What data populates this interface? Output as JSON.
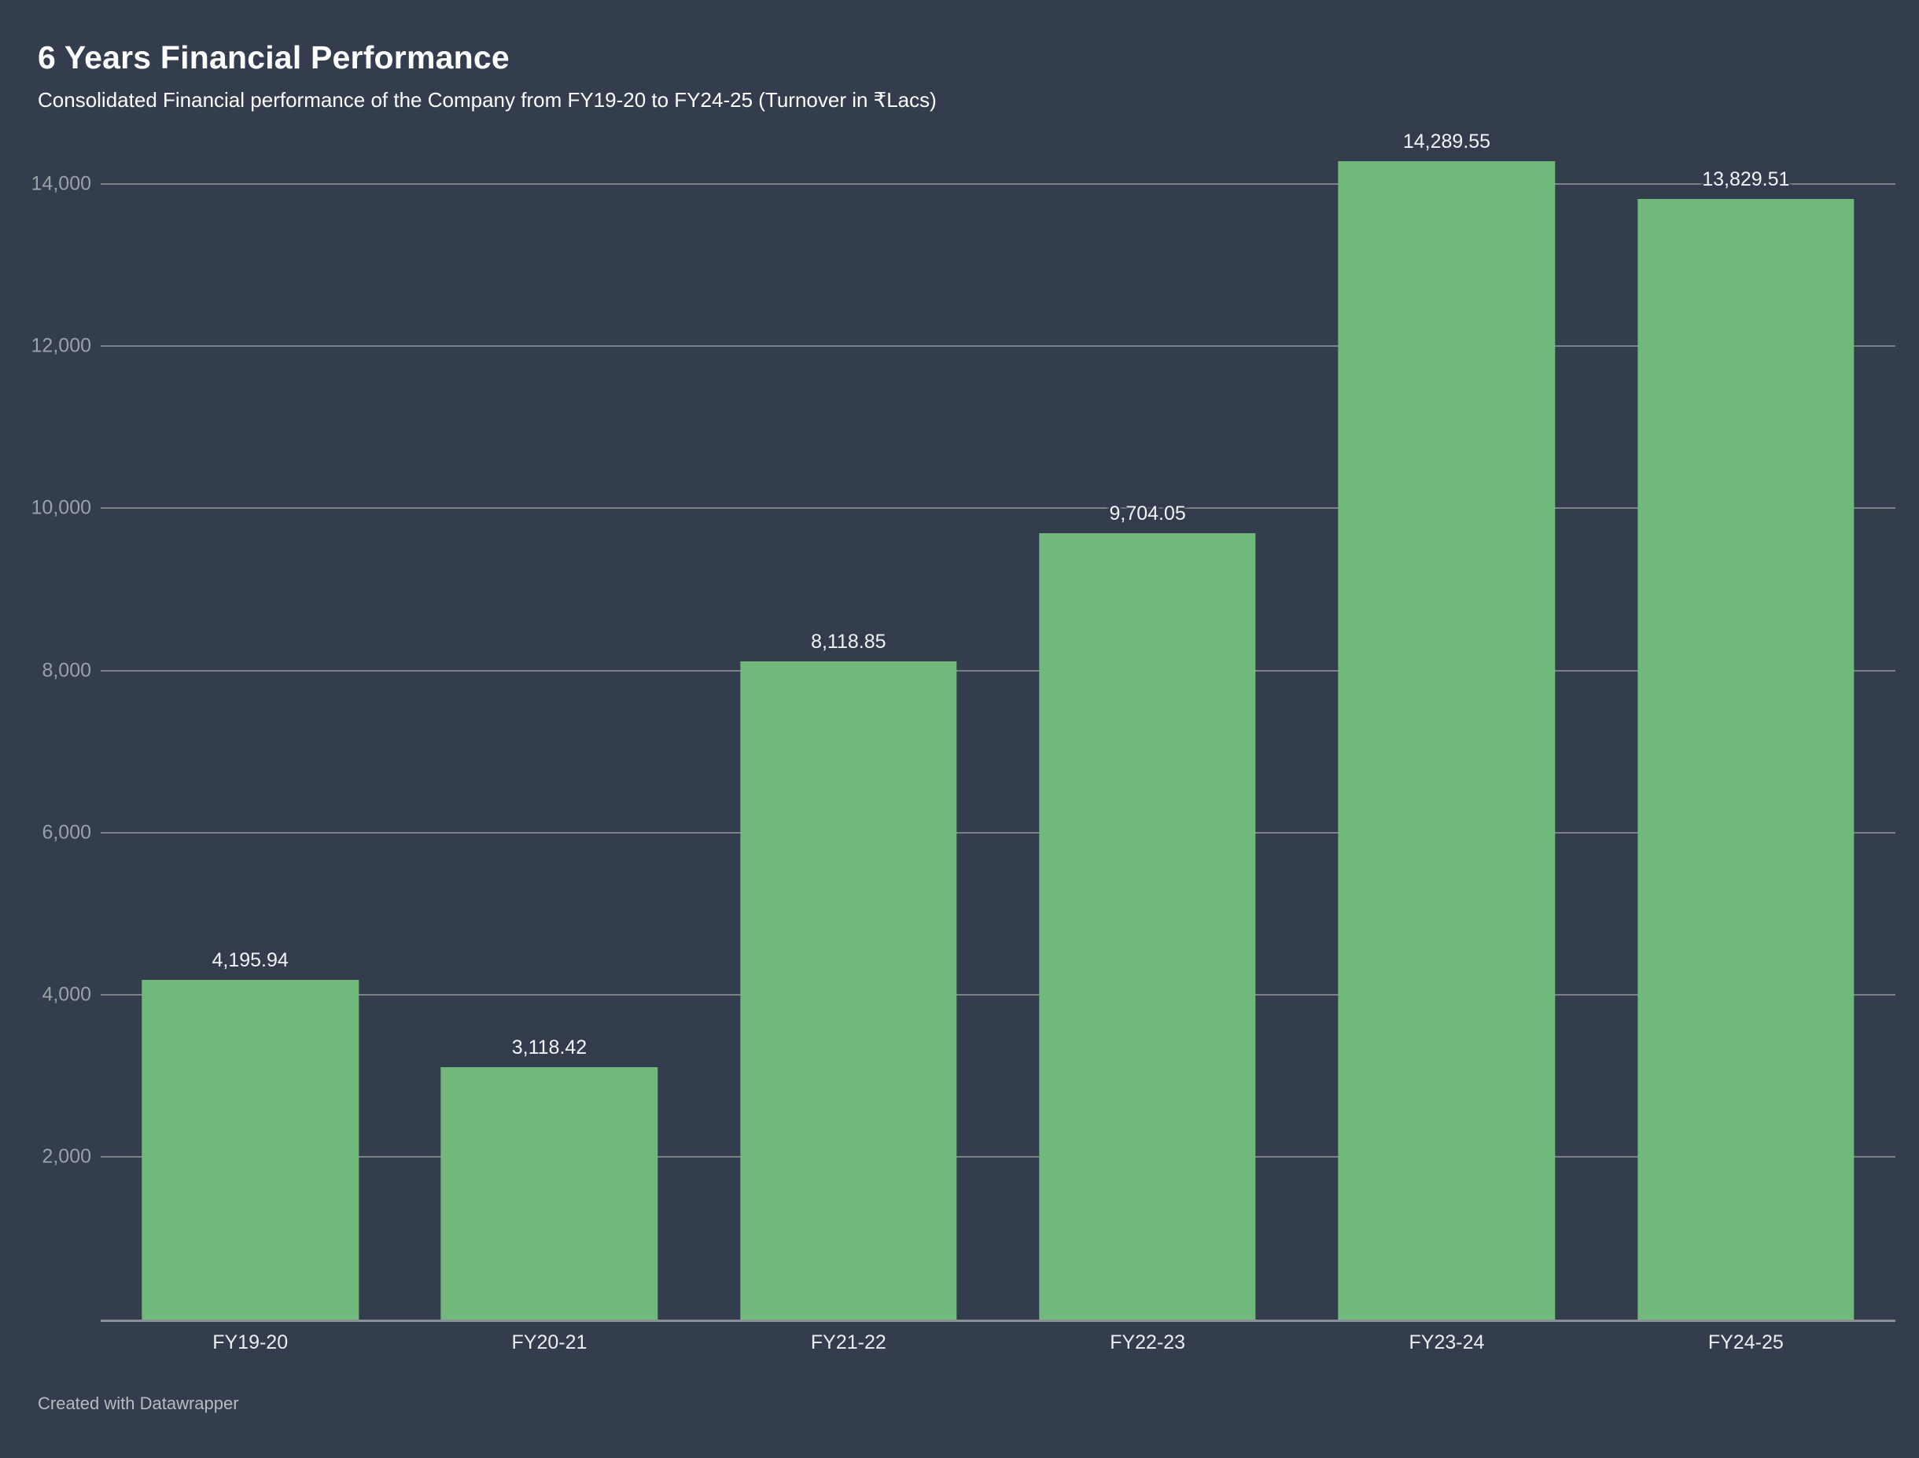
{
  "header": {
    "title": "6 Years Financial Performance",
    "subtitle": "Consolidated Financial performance of the Company from FY19-20 to FY24-25 (Turnover in ₹Lacs)"
  },
  "footer": {
    "attribution": "Created with Datawrapper"
  },
  "colors": {
    "background": "#333d4d",
    "bar": "#70b97b",
    "gridline": "#7c8187",
    "axis_line": "#8b9096",
    "tick_text": "#9aa1a8",
    "value_text": "#f2f4f6",
    "xlabel_text": "#eceef0",
    "title_text": "#ffffff",
    "footer_text": "#b8bcc1"
  },
  "chart_data": {
    "type": "bar",
    "title": "6 Years Financial Performance",
    "subtitle": "Consolidated Financial performance of the Company from FY19-20 to FY24-25 (Turnover in ₹Lacs)",
    "unit": "₹Lacs",
    "categories": [
      "FY19-20",
      "FY20-21",
      "FY21-22",
      "FY22-23",
      "FY23-24",
      "FY24-25"
    ],
    "values": [
      4195.94,
      3118.42,
      8118.85,
      9704.05,
      14289.55,
      13829.51
    ],
    "value_labels": [
      "4,195.94",
      "3,118.42",
      "8,118.85",
      "9,704.05",
      "14,289.55",
      "13,829.51"
    ],
    "y_ticks": [
      2000,
      4000,
      6000,
      8000,
      10000,
      12000,
      14000
    ],
    "y_tick_labels": [
      "2,000",
      "4,000",
      "6,000",
      "8,000",
      "10,000",
      "12,000",
      "14,000"
    ],
    "ylim": [
      0,
      14730
    ],
    "grid": "horizontal",
    "legend": "none",
    "attribution": "Created with Datawrapper"
  }
}
